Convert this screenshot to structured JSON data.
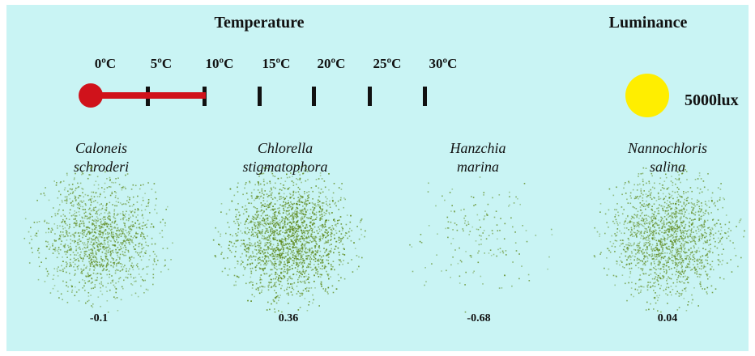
{
  "header": {
    "temperature_title": "Temperature",
    "luminance_title": "Luminance"
  },
  "temperature_scale": {
    "ticks": [
      "0ºC",
      "5ºC",
      "10ºC",
      "15ºC",
      "20ºC",
      "25ºC",
      "30ºC"
    ],
    "current_value_celsius": 10,
    "bar_color": "#d0121b"
  },
  "luminance": {
    "value_label": "5000lux",
    "sun_color": "#ffee00"
  },
  "species": [
    {
      "name_line1": "Caloneis",
      "name_line2": "schroderi",
      "value": "-0.1",
      "density": 0.55
    },
    {
      "name_line1": "Chlorella",
      "name_line2": "stigmatophora",
      "value": "0.36",
      "density": 1.0
    },
    {
      "name_line1": "Hanzchia",
      "name_line2": "marina",
      "value": "-0.68",
      "density": 0.05
    },
    {
      "name_line1": "Nannochloris",
      "name_line2": "salina",
      "value": "0.04",
      "density": 0.65
    }
  ],
  "colors": {
    "background": "#c9f4f4",
    "algae": "#5f8a1e"
  }
}
